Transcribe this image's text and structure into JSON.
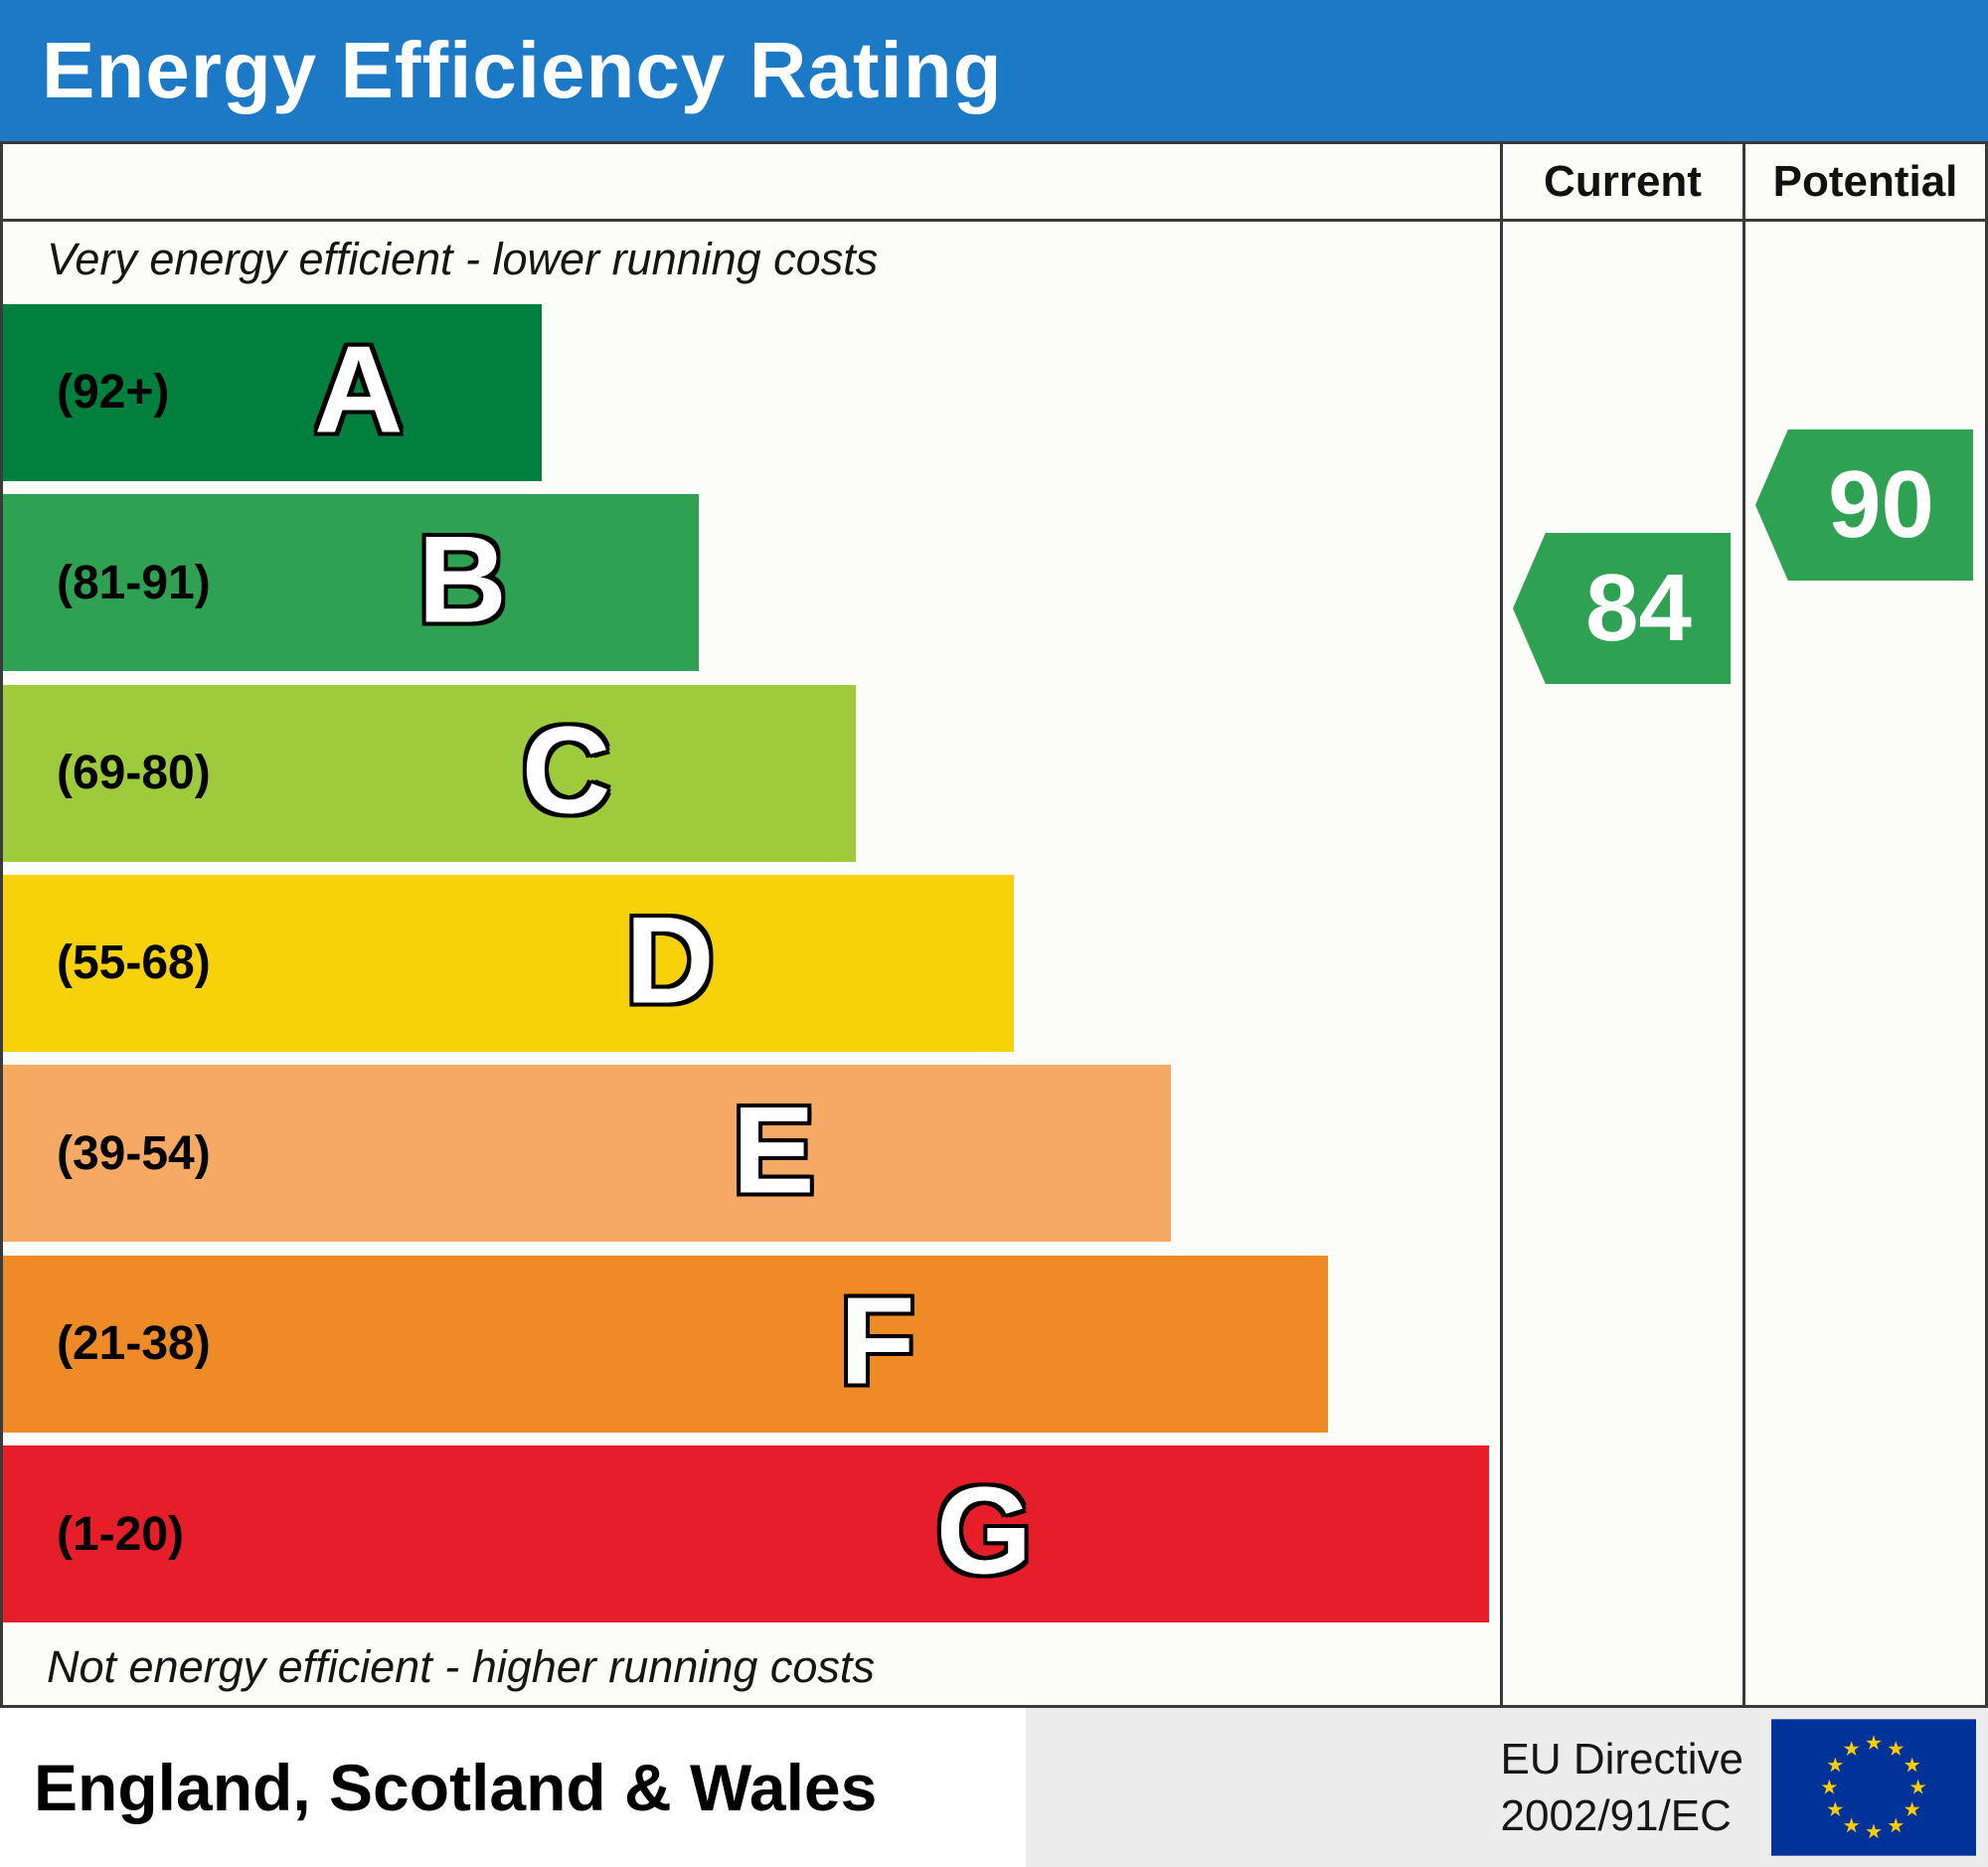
{
  "header": {
    "title": "Energy Efficiency Rating",
    "bg": "#1c79c5"
  },
  "chart_data": {
    "type": "bar",
    "title": "Energy Efficiency Rating",
    "annotations": {
      "top": "Very energy efficient - lower running costs",
      "bottom": "Not energy efficient - higher running costs"
    },
    "bands": [
      {
        "letter": "A",
        "range": "(92+)",
        "min": 92,
        "max": 100,
        "color": "#007f3d",
        "width_pct": 36
      },
      {
        "letter": "B",
        "range": "(81-91)",
        "min": 81,
        "max": 91,
        "color": "#2ea152",
        "width_pct": 46.5
      },
      {
        "letter": "C",
        "range": "(69-80)",
        "min": 69,
        "max": 80,
        "color": "#9dcb3c",
        "width_pct": 57
      },
      {
        "letter": "D",
        "range": "(55-68)",
        "min": 55,
        "max": 68,
        "color": "#f7d10a",
        "width_pct": 67.5
      },
      {
        "letter": "E",
        "range": "(39-54)",
        "min": 39,
        "max": 54,
        "color": "#f5a963",
        "width_pct": 78
      },
      {
        "letter": "F",
        "range": "(21-38)",
        "min": 21,
        "max": 38,
        "color": "#ee8b26",
        "width_pct": 88.5
      },
      {
        "letter": "G",
        "range": "(1-20)",
        "min": 1,
        "max": 20,
        "color": "#e61e29",
        "width_pct": 99.3
      }
    ],
    "current": {
      "label": "Current",
      "value": 84,
      "band": "B",
      "color": "#2ea152"
    },
    "potential": {
      "label": "Potential",
      "value": 90,
      "band": "B",
      "color": "#2ea152"
    }
  },
  "footer": {
    "region": "England, Scotland & Wales",
    "directive_line1": "EU Directive",
    "directive_line2": "2002/91/EC",
    "flag": {
      "name": "eu-flag",
      "bg": "#003399",
      "star": "#ffcc00"
    }
  }
}
